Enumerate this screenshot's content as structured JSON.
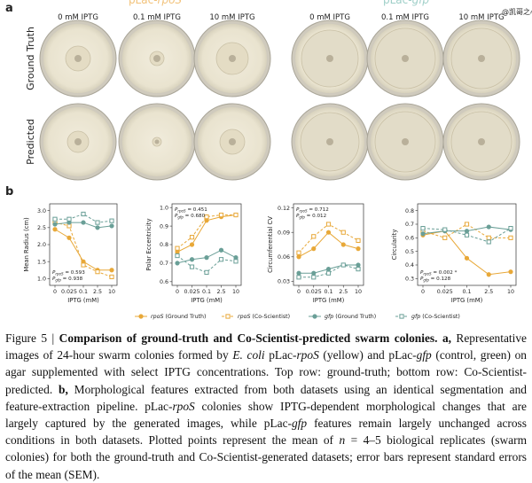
{
  "panel_a": {
    "label": "a",
    "groups": [
      {
        "prefix": "pLac-",
        "gene": "rpoS",
        "color": "#f2c27a"
      },
      {
        "prefix": "pLac-",
        "gene": "gfp",
        "color": "#9fcfc8"
      }
    ],
    "columns": [
      "0 mM IPTG",
      "0.1 mM IPTG",
      "10 mM IPTG",
      "0 mM IPTG",
      "0.1 mM IPTG",
      "10 mM IPTG"
    ],
    "rows": [
      "Ground Truth",
      "Predicted"
    ],
    "watermark": "@凯哥之心"
  },
  "panel_b": {
    "label": "b",
    "legend": [
      {
        "gene": "rpoS",
        "rest": " (Ground Truth)",
        "color": "#e8a838",
        "marker": "circle",
        "dash": false
      },
      {
        "gene": "rpoS",
        "rest": " (Co-Scientist)",
        "color": "#e8a838",
        "marker": "square",
        "dash": true
      },
      {
        "gene": "gfp",
        "rest": " (Ground Truth)",
        "color": "#6a9f97",
        "marker": "circle",
        "dash": false
      },
      {
        "gene": "gfp",
        "rest": " (Co-Scientist)",
        "color": "#6a9f97",
        "marker": "square",
        "dash": true
      }
    ]
  },
  "chart_data": [
    {
      "type": "line",
      "ylabel": "Mean Radius (cm)",
      "xlabel": "IPTG (mM)",
      "categories": [
        "0",
        "0.025",
        "0.1",
        "2.5",
        "10"
      ],
      "ylim": [
        0.8,
        3.2
      ],
      "yticks": [
        {
          "value": 1,
          "label": "1.0"
        },
        1.5,
        {
          "value": 2,
          "label": "2.0"
        },
        2.5,
        {
          "value": 3,
          "label": "3.0"
        }
      ],
      "annotation_corner": "bottom-left",
      "annotations": [
        {
          "main": "P",
          "sub": "rpoS",
          "rest": " = 0.593"
        },
        {
          "main": "P",
          "sub": "gfp",
          "rest": " = 0.938"
        }
      ],
      "series": [
        {
          "values": [
            2.45,
            2.2,
            1.5,
            1.25,
            1.25
          ]
        },
        {
          "values": [
            2.65,
            2.55,
            1.4,
            1.2,
            1.05
          ]
        },
        {
          "values": [
            2.6,
            2.65,
            2.65,
            2.5,
            2.55
          ]
        },
        {
          "values": [
            2.75,
            2.75,
            2.9,
            2.65,
            2.7
          ]
        }
      ]
    },
    {
      "type": "line",
      "ylabel": "Polar Eccentricity",
      "xlabel": "IPTG (mM)",
      "categories": [
        "0",
        "0.025",
        "0.1",
        "2.5",
        "10"
      ],
      "ylim": [
        0.58,
        1.02
      ],
      "yticks": [
        0.6,
        0.7,
        0.8,
        0.9,
        {
          "value": 1,
          "label": "1.0"
        }
      ],
      "annotation_corner": "top-left",
      "annotations": [
        {
          "main": "P",
          "sub": "rpoS",
          "rest": " = 0.451"
        },
        {
          "main": "P",
          "sub": "gfp",
          "rest": " = 0.680"
        }
      ],
      "series": [
        {
          "values": [
            0.76,
            0.8,
            0.93,
            0.95,
            0.96
          ]
        },
        {
          "values": [
            0.78,
            0.84,
            0.95,
            0.96,
            0.96
          ]
        },
        {
          "values": [
            0.7,
            0.72,
            0.73,
            0.77,
            0.73
          ]
        },
        {
          "values": [
            0.74,
            0.68,
            0.65,
            0.72,
            0.71
          ]
        }
      ]
    },
    {
      "type": "line",
      "ylabel": "Circumferential CV",
      "xlabel": "IPTG (mM)",
      "categories": [
        "0",
        "0.025",
        "0.1",
        "2.5",
        "10"
      ],
      "ylim": [
        0.025,
        0.125
      ],
      "yticks": [
        0.03,
        0.06,
        0.09,
        0.12
      ],
      "annotation_corner": "top-left",
      "annotations": [
        {
          "main": "P",
          "sub": "rpoS",
          "rest": " = 0.712"
        },
        {
          "main": "P",
          "sub": "gfp",
          "rest": " = 0.012"
        }
      ],
      "series": [
        {
          "values": [
            0.06,
            0.07,
            0.09,
            0.075,
            0.07
          ]
        },
        {
          "values": [
            0.065,
            0.085,
            0.1,
            0.09,
            0.08
          ]
        },
        {
          "values": [
            0.04,
            0.04,
            0.045,
            0.05,
            0.05
          ]
        },
        {
          "values": [
            0.035,
            0.035,
            0.04,
            0.05,
            0.045
          ]
        }
      ]
    },
    {
      "type": "line",
      "ylabel": "Circularity",
      "xlabel": "IPTG (mM)",
      "categories": [
        "0",
        "0.025",
        "0.1",
        "2.5",
        "10"
      ],
      "ylim": [
        0.25,
        0.85
      ],
      "yticks": [
        0.3,
        0.4,
        0.5,
        0.6,
        0.7,
        0.8
      ],
      "annotation_corner": "bottom-left",
      "annotations": [
        {
          "main": "P",
          "sub": "rpoS",
          "rest": " = 0.002 *"
        },
        {
          "main": "P",
          "sub": "gfp",
          "rest": " = 0.128"
        }
      ],
      "series": [
        {
          "values": [
            0.62,
            0.65,
            0.45,
            0.33,
            0.35
          ]
        },
        {
          "values": [
            0.65,
            0.6,
            0.7,
            0.6,
            0.6
          ]
        },
        {
          "values": [
            0.63,
            0.65,
            0.65,
            0.68,
            0.66
          ]
        },
        {
          "values": [
            0.67,
            0.66,
            0.62,
            0.57,
            0.67
          ]
        }
      ]
    }
  ],
  "caption": [
    {
      "text": "Figure 5 | ",
      "style": "normal"
    },
    {
      "text": "Comparison of ground-truth and Co-Scientist-predicted swarm colonies.",
      "style": "bold"
    },
    {
      "text": " ",
      "style": "normal"
    },
    {
      "text": "a,",
      "style": "bold"
    },
    {
      "text": " Representative images of 24-hour swarm colonies formed by ",
      "style": "normal"
    },
    {
      "text": "E. coli",
      "style": "italic"
    },
    {
      "text": " pLac-",
      "style": "normal"
    },
    {
      "text": "rpoS",
      "style": "italic"
    },
    {
      "text": " (yellow) and pLac-",
      "style": "normal"
    },
    {
      "text": "gfp",
      "style": "italic"
    },
    {
      "text": " (control, green) on agar supplemented with select IPTG concentrations. Top row: ground-truth; bottom row: Co-Scientist-predicted. ",
      "style": "normal"
    },
    {
      "text": "b,",
      "style": "bold"
    },
    {
      "text": " Morphological features extracted from both datasets using an identical segmentation and feature-extraction pipeline. pLac-",
      "style": "normal"
    },
    {
      "text": "rpoS",
      "style": "italic"
    },
    {
      "text": " colonies show IPTG-dependent morphological changes that are largely captured by the generated images, while pLac-",
      "style": "normal"
    },
    {
      "text": "gfp",
      "style": "italic"
    },
    {
      "text": " features remain largely unchanged across conditions in both datasets. Plotted points represent the mean of ",
      "style": "normal"
    },
    {
      "text": "n",
      "style": "italic"
    },
    {
      "text": " = 4–5 biological replicates (swarm colonies) for both the ground-truth and Co-Scientist-generated datasets; error bars represent standard errors of the mean (SEM).",
      "style": "normal"
    }
  ]
}
